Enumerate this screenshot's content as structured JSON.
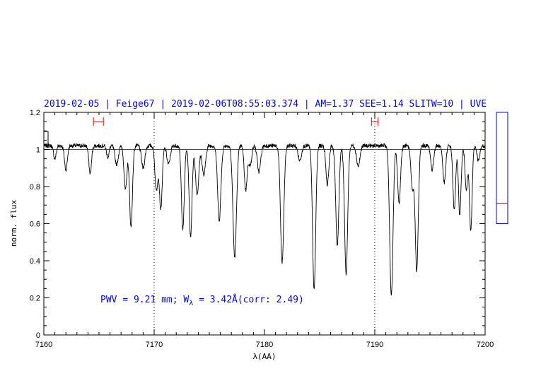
{
  "header": "2019-02-05 | Feige67 | 2019-02-06T08:55:03.374 | AM=1.37 SEE=1.14 SLITW=10 | UVE",
  "annotation": {
    "pwv_prefix": "PWV = 9.21 mm; W",
    "w_subscript": "λ",
    "w_value": " = 3.42Å(corr: 2.49)"
  },
  "colors": {
    "text": "#0000ff",
    "spectrum": "#000000",
    "continuum": "#ff0000",
    "markers": "#ff0000",
    "side_box": "#0000ff"
  },
  "chart_data": {
    "type": "line",
    "title": "",
    "xlabel": "λ(AA)",
    "ylabel": "norm. flux",
    "xlim": [
      7160,
      7200
    ],
    "ylim": [
      0,
      1.2
    ],
    "x_ticks": [
      7160,
      7170,
      7180,
      7190,
      7200
    ],
    "y_ticks": [
      0,
      0.2,
      0.4,
      0.6,
      0.8,
      1,
      1.2
    ],
    "x_tick_labels": [
      "7160",
      "7170",
      "7180",
      "7190",
      "7200"
    ],
    "y_tick_labels": [
      "0",
      "0.2",
      "0.4",
      "0.6",
      "0.8",
      "1",
      "1.2"
    ],
    "continuum_level": 1.0,
    "vlines": [
      7170,
      7190
    ],
    "intervals": [
      {
        "x0": 7164.5,
        "x1": 7165.4,
        "y": 1.15
      },
      {
        "x0": 7189.7,
        "x1": 7190.3,
        "y": 1.15
      }
    ],
    "side_indicator": {
      "ymin": 0.6,
      "ymax": 1.2,
      "level": 0.71
    },
    "baseline": 1.02,
    "absorption_lines": [
      {
        "center": 7161.0,
        "depth": 0.07,
        "width": 0.12
      },
      {
        "center": 7162.0,
        "depth": 0.13,
        "width": 0.13
      },
      {
        "center": 7164.2,
        "depth": 0.15,
        "width": 0.12
      },
      {
        "center": 7165.8,
        "depth": 0.06,
        "width": 0.12
      },
      {
        "center": 7166.6,
        "depth": 0.1,
        "width": 0.15
      },
      {
        "center": 7167.4,
        "depth": 0.24,
        "width": 0.13
      },
      {
        "center": 7167.9,
        "depth": 0.44,
        "width": 0.13
      },
      {
        "center": 7169.0,
        "depth": 0.12,
        "width": 0.15
      },
      {
        "center": 7170.2,
        "depth": 0.24,
        "width": 0.13
      },
      {
        "center": 7170.6,
        "depth": 0.34,
        "width": 0.13
      },
      {
        "center": 7171.3,
        "depth": 0.1,
        "width": 0.15
      },
      {
        "center": 7172.6,
        "depth": 0.45,
        "width": 0.13
      },
      {
        "center": 7173.3,
        "depth": 0.49,
        "width": 0.13
      },
      {
        "center": 7173.9,
        "depth": 0.26,
        "width": 0.15
      },
      {
        "center": 7174.5,
        "depth": 0.16,
        "width": 0.15
      },
      {
        "center": 7175.9,
        "depth": 0.4,
        "width": 0.15
      },
      {
        "center": 7177.3,
        "depth": 0.6,
        "width": 0.16
      },
      {
        "center": 7178.3,
        "depth": 0.24,
        "width": 0.13
      },
      {
        "center": 7178.7,
        "depth": 0.11,
        "width": 0.13
      },
      {
        "center": 7179.5,
        "depth": 0.14,
        "width": 0.15
      },
      {
        "center": 7181.6,
        "depth": 0.63,
        "width": 0.15
      },
      {
        "center": 7183.2,
        "depth": 0.08,
        "width": 0.15
      },
      {
        "center": 7184.5,
        "depth": 0.78,
        "width": 0.14
      },
      {
        "center": 7185.7,
        "depth": 0.21,
        "width": 0.13
      },
      {
        "center": 7186.6,
        "depth": 0.54,
        "width": 0.14
      },
      {
        "center": 7187.4,
        "depth": 0.69,
        "width": 0.14
      },
      {
        "center": 7188.5,
        "depth": 0.11,
        "width": 0.15
      },
      {
        "center": 7191.5,
        "depth": 0.81,
        "width": 0.15
      },
      {
        "center": 7192.2,
        "depth": 0.31,
        "width": 0.13
      },
      {
        "center": 7193.4,
        "depth": 0.23,
        "width": 0.13
      },
      {
        "center": 7193.8,
        "depth": 0.67,
        "width": 0.14
      },
      {
        "center": 7195.2,
        "depth": 0.13,
        "width": 0.13
      },
      {
        "center": 7196.3,
        "depth": 0.2,
        "width": 0.13
      },
      {
        "center": 7197.2,
        "depth": 0.35,
        "width": 0.12
      },
      {
        "center": 7197.7,
        "depth": 0.37,
        "width": 0.12
      },
      {
        "center": 7198.3,
        "depth": 0.23,
        "width": 0.12
      },
      {
        "center": 7198.7,
        "depth": 0.46,
        "width": 0.12
      },
      {
        "center": 7199.4,
        "depth": 0.08,
        "width": 0.13
      }
    ]
  }
}
